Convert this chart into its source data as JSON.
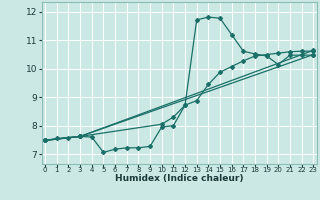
{
  "xlabel": "Humidex (Indice chaleur)",
  "bg_color": "#cce8e4",
  "line_color": "#1a7068",
  "grid_color": "#ffffff",
  "xlim": [
    -0.3,
    23.3
  ],
  "ylim": [
    6.65,
    12.35
  ],
  "xticks": [
    0,
    1,
    2,
    3,
    4,
    5,
    6,
    7,
    8,
    9,
    10,
    11,
    12,
    13,
    14,
    15,
    16,
    17,
    18,
    19,
    20,
    21,
    22,
    23
  ],
  "yticks": [
    7,
    8,
    9,
    10,
    11,
    12
  ],
  "series": [
    {
      "x": [
        0,
        1,
        2,
        3,
        4,
        5,
        6,
        7,
        8,
        9,
        10,
        11,
        12,
        13,
        14,
        15,
        16,
        17,
        18,
        19,
        20,
        21,
        22,
        23
      ],
      "y": [
        7.48,
        7.55,
        7.58,
        7.62,
        7.6,
        7.06,
        7.17,
        7.22,
        7.22,
        7.27,
        7.95,
        8.0,
        8.72,
        11.72,
        11.82,
        11.78,
        11.2,
        10.62,
        10.52,
        10.45,
        10.15,
        10.48,
        10.48,
        10.48
      ]
    },
    {
      "x": [
        0,
        3,
        23
      ],
      "y": [
        7.48,
        7.62,
        10.5
      ]
    },
    {
      "x": [
        0,
        3,
        23
      ],
      "y": [
        7.48,
        7.62,
        10.65
      ]
    },
    {
      "x": [
        0,
        3,
        10,
        11,
        12,
        13,
        14,
        15,
        16,
        17,
        18,
        19,
        20,
        21,
        22,
        23
      ],
      "y": [
        7.48,
        7.62,
        8.05,
        8.3,
        8.72,
        8.88,
        9.45,
        9.88,
        10.08,
        10.28,
        10.45,
        10.5,
        10.55,
        10.6,
        10.62,
        10.62
      ]
    }
  ]
}
